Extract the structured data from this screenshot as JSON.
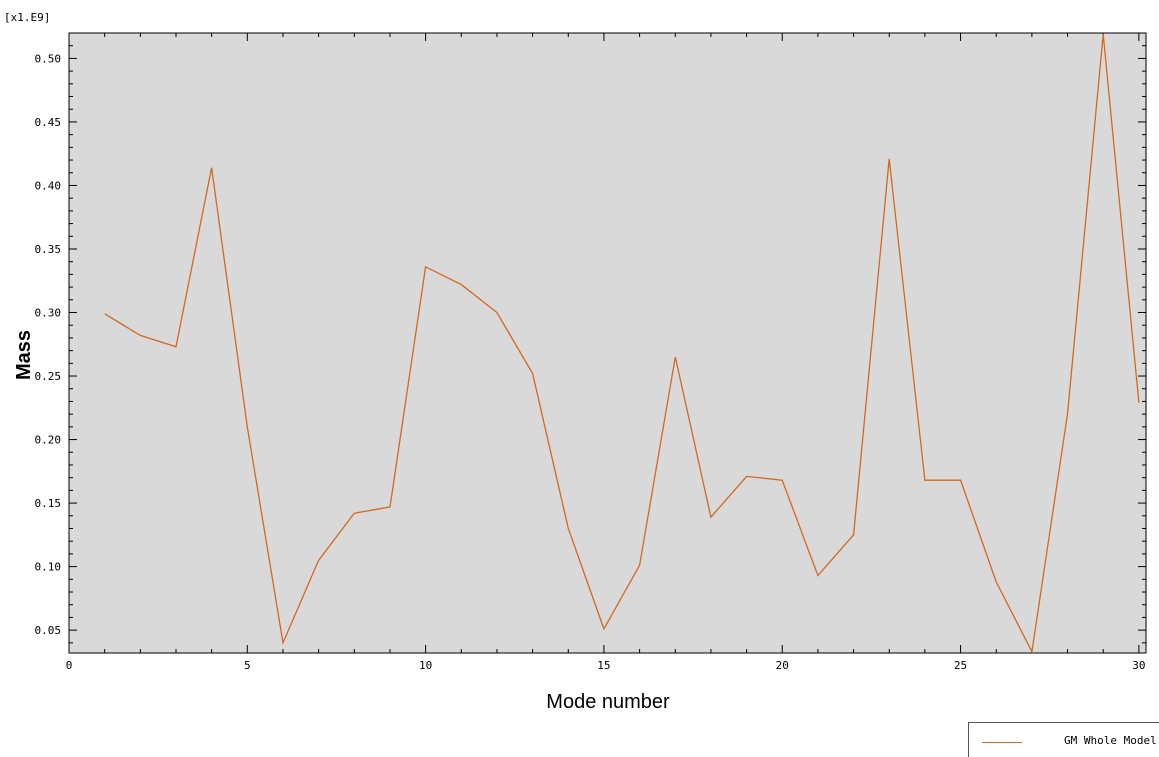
{
  "chart_data": {
    "type": "line",
    "scale_label": "[x1.E9]",
    "xlabel": "Mode number",
    "ylabel": "Mass",
    "xlim": [
      0,
      30.2
    ],
    "ylim": [
      0.032,
      0.52
    ],
    "xticks": [
      0,
      5,
      10,
      15,
      20,
      25,
      30
    ],
    "yticks": [
      0.05,
      0.1,
      0.15,
      0.2,
      0.25,
      0.3,
      0.35,
      0.4,
      0.45,
      0.5
    ],
    "ytick_labels": [
      "0.05",
      "0.10",
      "0.15",
      "0.20",
      "0.25",
      "0.30",
      "0.35",
      "0.40",
      "0.45",
      "0.50"
    ],
    "xtick_labels": [
      "0",
      "5",
      "10",
      "15",
      "20",
      "25",
      "30"
    ],
    "grid": false,
    "background": "#d9d9d9",
    "legend_position": "bottom-right",
    "series": [
      {
        "name": "GM Whole Model",
        "color": "#d2691e",
        "x": [
          1,
          2,
          3,
          4,
          5,
          6,
          7,
          8,
          9,
          10,
          11,
          12,
          13,
          14,
          15,
          16,
          17,
          18,
          19,
          20,
          21,
          22,
          23,
          24,
          25,
          26,
          27,
          28,
          29,
          30
        ],
        "y": [
          0.299,
          0.282,
          0.273,
          0.414,
          0.21,
          0.04,
          0.105,
          0.142,
          0.147,
          0.336,
          0.322,
          0.3,
          0.252,
          0.13,
          0.051,
          0.101,
          0.265,
          0.139,
          0.171,
          0.168,
          0.093,
          0.125,
          0.421,
          0.168,
          0.168,
          0.088,
          0.033,
          0.22,
          0.519,
          0.229
        ]
      }
    ]
  }
}
